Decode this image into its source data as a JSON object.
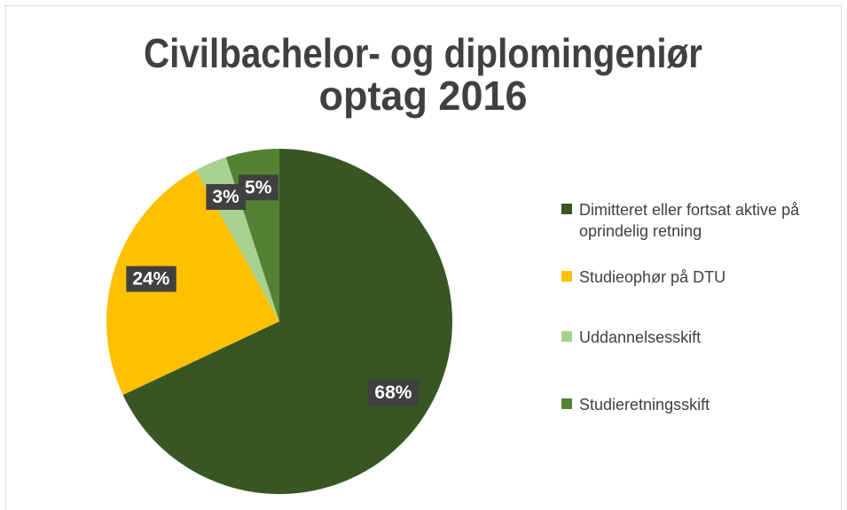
{
  "chart_data": {
    "type": "pie",
    "title": [
      "Civilbachelor- og diplomingeniør",
      "optag 2016"
    ],
    "categories": [
      "Dimitteret eller fortsat aktive på oprindelig retning",
      "Studieophør på DTU",
      "Uddannelsesskift",
      "Studieretningsskift"
    ],
    "values": [
      68,
      24,
      3,
      5
    ],
    "value_labels": [
      "68%",
      "24%",
      "3%",
      "5%"
    ],
    "colors": [
      "#375623",
      "#ffc000",
      "#a9d18e",
      "#548235"
    ],
    "legend": "right"
  }
}
